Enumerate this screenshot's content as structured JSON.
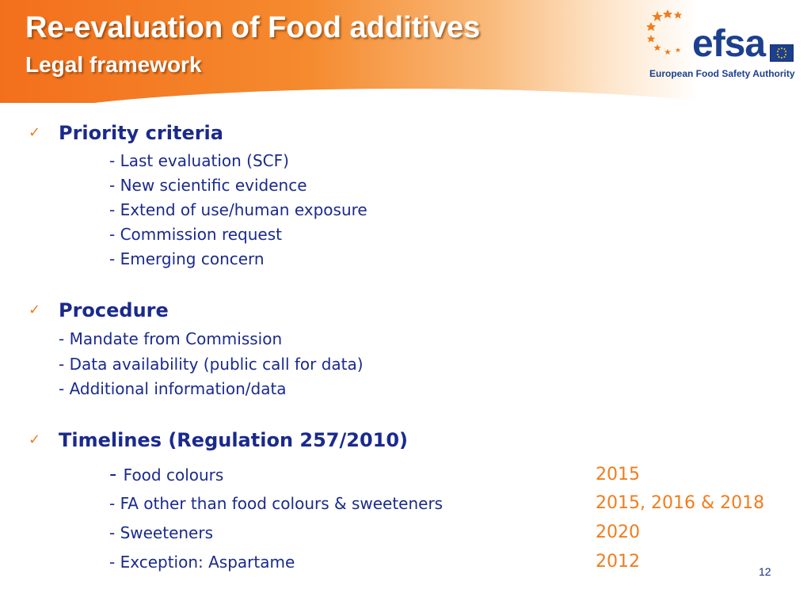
{
  "header": {
    "title": "Re-evaluation of Food additives",
    "subtitle": "Legal framework",
    "logo": {
      "word": "efsa",
      "tagline": "European Food Safety Authority"
    }
  },
  "sections": [
    {
      "heading": "Priority criteria",
      "items": [
        "- Last evaluation (SCF)",
        "- New scientific evidence",
        "- Extend of use/human exposure",
        "- Commission request",
        "- Emerging concern"
      ]
    },
    {
      "heading": "Procedure",
      "items": [
        "- Mandate from Commission",
        "- Data availability (public call for data)",
        "- Additional information/data"
      ]
    },
    {
      "heading": "Timelines (Regulation 257/2010)",
      "rows": [
        {
          "label": "Food colours",
          "dash": "- ",
          "date": "2015"
        },
        {
          "label": "- FA other than food colours & sweeteners",
          "date": "2015, 2016 & 2018"
        },
        {
          "label": "- Sweeteners",
          "date": "2020"
        },
        {
          "label": "- Exception: Aspartame",
          "date": "2012"
        }
      ]
    }
  ],
  "slide_number": "12",
  "colors": {
    "accent_orange": "#f07d1e",
    "text_navy": "#1a2a8c",
    "logo_blue": "#1d3f8f"
  },
  "icons": {
    "bullet": "check-icon",
    "logo_mark": "efsa-stars-icon",
    "flag": "eu-flag-icon"
  }
}
